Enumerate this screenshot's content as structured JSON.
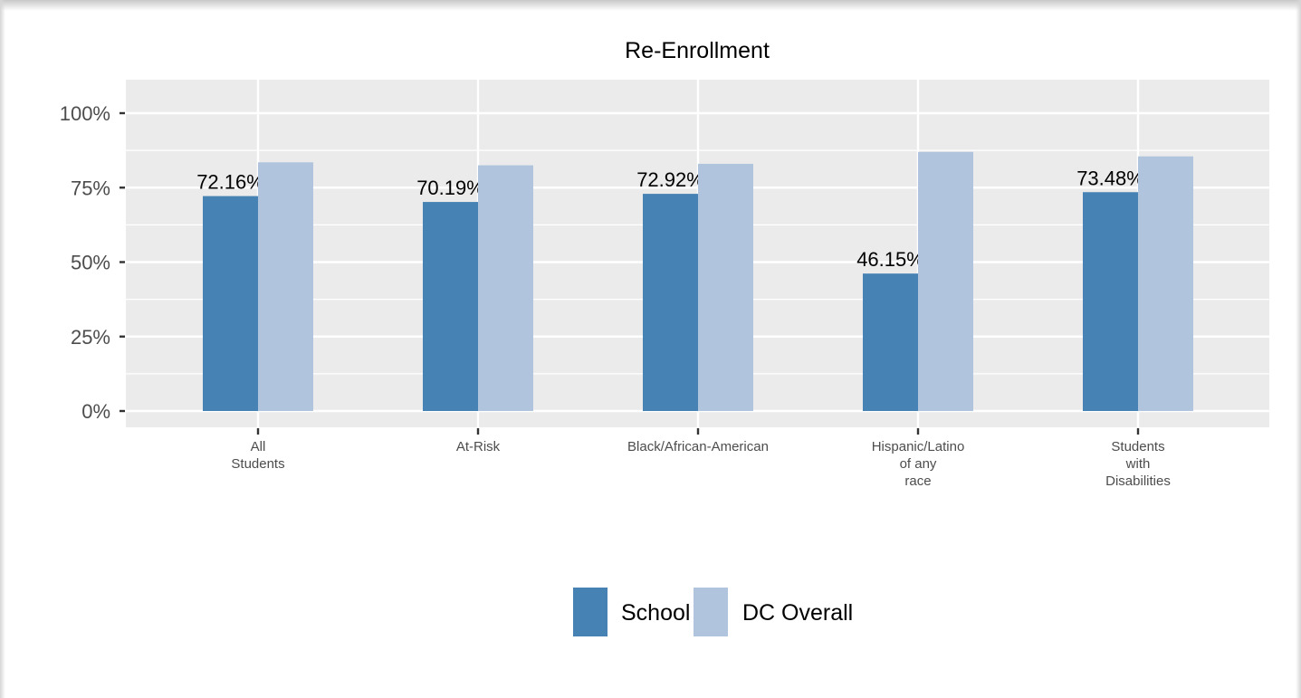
{
  "chart_data": {
    "type": "bar",
    "title": "Re-Enrollment",
    "xlabel": "",
    "ylabel": "",
    "categories": [
      [
        "All",
        "Students"
      ],
      [
        "At-Risk"
      ],
      [
        "Black/African-American"
      ],
      [
        "Hispanic/Latino",
        "of any",
        "race"
      ],
      [
        "Students",
        "with",
        "Disabilities"
      ]
    ],
    "series": [
      {
        "name": "School",
        "color": "#4682b4",
        "values": [
          72.16,
          70.19,
          72.92,
          46.15,
          73.48
        ],
        "labels": [
          "72.16%",
          "70.19%",
          "72.92%",
          "46.15%",
          "73.48%"
        ]
      },
      {
        "name": "DC Overall",
        "color": "#b0c4de",
        "values": [
          83.5,
          82.5,
          83.0,
          87.0,
          85.5
        ],
        "labels": [
          "",
          "",
          "",
          "",
          ""
        ]
      }
    ],
    "ylim": [
      0,
      105
    ],
    "yticks": [
      0,
      25,
      50,
      75,
      100
    ],
    "ytick_labels": [
      "0%",
      "25%",
      "50%",
      "75%",
      "100%"
    ],
    "grid": true,
    "legend_position": "bottom",
    "panel_background": "#ebebeb",
    "gridline_color": "#ffffff"
  }
}
